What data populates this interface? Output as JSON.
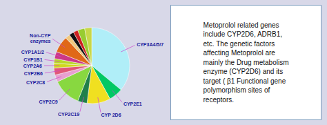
{
  "chart_data": {
    "type": "pie",
    "categories": [
      "CYP3A4/5/7",
      "CYP2E1",
      "CYP 2D6",
      "CYP2C19",
      "CYP2C9",
      "CYP2C8",
      "CYP2B6",
      "CYP2A6",
      "CYP1B1",
      "CYP1A1/2",
      "Non-CYP\nenzymes",
      null,
      null,
      null,
      null,
      null
    ],
    "values": [
      36,
      6,
      10,
      4,
      12,
      3,
      3,
      2,
      2,
      3,
      7,
      2,
      2,
      2,
      3,
      3
    ],
    "colors": [
      "#b0eef8",
      "#00c864",
      "#f0e020",
      "#20804a",
      "#88d840",
      "#e8a0d0",
      "#e05878",
      "#d0d820",
      "#b8d828",
      "#cc3888",
      "#e06818",
      "#f0c880",
      "#101010",
      "#cc2020",
      "#98cc30",
      "#c8d848"
    ],
    "annotations": [
      "Metoprolol related genes\ninclude CYP2D6, ADRB1,\netc. The genetic factors\naffecting Metoprolol are\nmainly the Drug metabolism\nenzyme (CYP2D6) and its\ntarget ( β1 Functional gene\npolymorphism sites of\nreceptors."
    ]
  }
}
